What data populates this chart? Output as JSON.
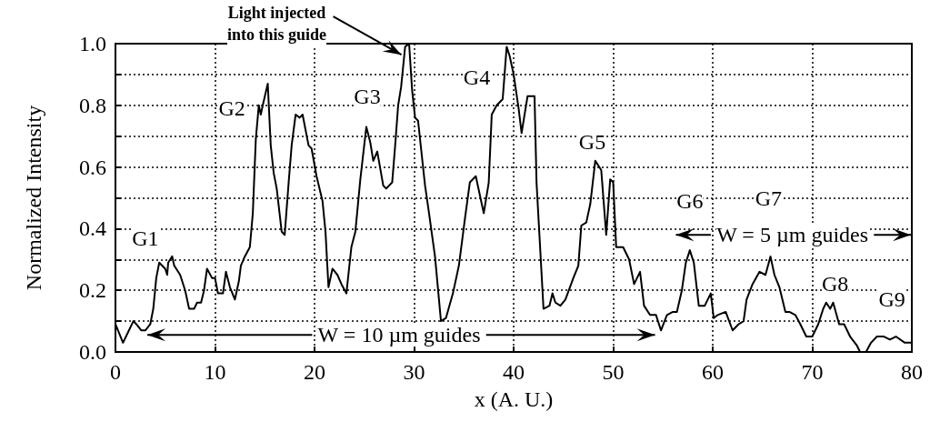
{
  "chart_data": {
    "type": "line",
    "xlabel": "x (A. U.)",
    "ylabel": "Normalized Intensity",
    "xlim": [
      0,
      80
    ],
    "xticks": [
      0,
      10,
      20,
      30,
      40,
      50,
      60,
      70,
      80
    ],
    "ylim": [
      0,
      1
    ],
    "yticks": [
      {
        "value": 0,
        "label": "0.0"
      },
      {
        "value": 0.1,
        "label": null
      },
      0.2,
      {
        "value": 0.3,
        "label": null
      },
      0.4,
      {
        "value": 0.5,
        "label": null
      },
      0.6,
      {
        "value": 0.7,
        "label": null
      },
      0.8,
      {
        "value": 0.9,
        "label": null
      },
      {
        "value": 1,
        "label": "1.0"
      }
    ],
    "grid": true,
    "marker": "none",
    "line_style": "solid",
    "series": [
      {
        "color": "#000000",
        "x": [
          0,
          0.76,
          1.06,
          1.8,
          2.1,
          2.6,
          3.0,
          3.5,
          3.8,
          4.1,
          4.4,
          5.0,
          5.2,
          5.3,
          5.7,
          5.9,
          6.5,
          7.0,
          7.4,
          7.9,
          8.2,
          8.6,
          8.9,
          9.2,
          9.7,
          10.0,
          10.3,
          10.8,
          11.1,
          11.5,
          12.0,
          12.4,
          12.6,
          13.0,
          13.5,
          13.8,
          14.1,
          14.4,
          14.6,
          14.8,
          15.3,
          15.6,
          15.9,
          16.2,
          16.7,
          17.0,
          17.4,
          17.7,
          18.1,
          18.5,
          18.8,
          19.4,
          19.7,
          20.2,
          20.8,
          21.1,
          21.4,
          21.8,
          22.3,
          22.7,
          23.2,
          23.7,
          24.1,
          24.6,
          25.2,
          25.6,
          25.9,
          26.3,
          26.9,
          27.2,
          27.8,
          28.1,
          28.4,
          28.7,
          29.1,
          29.5,
          29.8,
          30.1,
          30.4,
          31.1,
          31.5,
          32.1,
          32.7,
          33.2,
          33.9,
          34.5,
          35.1,
          35.6,
          36.2,
          37.0,
          37.5,
          37.8,
          38.3,
          38.9,
          39.3,
          39.6,
          40.0,
          40.5,
          40.8,
          41.4,
          42.1,
          42.3,
          43.0,
          43.6,
          43.9,
          44.2,
          44.7,
          45.2,
          46.0,
          46.5,
          46.8,
          47.3,
          47.7,
          48.2,
          48.8,
          49.3,
          49.7,
          50.0,
          50.3,
          51.0,
          51.6,
          52.1,
          52.7,
          53.1,
          53.7,
          54.3,
          54.8,
          55.4,
          56.0,
          56.4,
          56.9,
          57.3,
          57.7,
          58.1,
          58.6,
          59.2,
          59.8,
          60.1,
          60.5,
          61.3,
          62.0,
          62.6,
          63.1,
          63.4,
          64.0,
          64.7,
          65.3,
          65.8,
          66.2,
          66.7,
          67.3,
          67.7,
          68.3,
          68.8,
          69.4,
          70.0,
          70.6,
          71.1,
          71.4,
          71.8,
          72.1,
          72.7,
          73.2,
          73.8,
          74.5,
          74.8,
          75.4,
          75.9,
          76.5,
          77.2,
          77.8,
          78.4,
          79.3,
          80.0
        ],
        "values": [
          0.09,
          0.03,
          0.05,
          0.1,
          0.09,
          0.07,
          0.07,
          0.09,
          0.14,
          0.24,
          0.29,
          0.27,
          0.25,
          0.29,
          0.31,
          0.28,
          0.25,
          0.2,
          0.14,
          0.14,
          0.16,
          0.16,
          0.2,
          0.27,
          0.24,
          0.24,
          0.19,
          0.19,
          0.26,
          0.21,
          0.17,
          0.23,
          0.28,
          0.31,
          0.34,
          0.45,
          0.69,
          0.8,
          0.77,
          0.8,
          0.87,
          0.67,
          0.58,
          0.53,
          0.39,
          0.38,
          0.55,
          0.67,
          0.77,
          0.76,
          0.77,
          0.67,
          0.66,
          0.57,
          0.49,
          0.39,
          0.21,
          0.27,
          0.25,
          0.22,
          0.19,
          0.34,
          0.39,
          0.56,
          0.73,
          0.68,
          0.62,
          0.65,
          0.54,
          0.53,
          0.55,
          0.67,
          0.8,
          0.86,
          0.99,
          1.0,
          0.85,
          0.76,
          0.75,
          0.54,
          0.45,
          0.31,
          0.1,
          0.11,
          0.19,
          0.28,
          0.43,
          0.55,
          0.57,
          0.45,
          0.55,
          0.77,
          0.8,
          0.82,
          0.99,
          0.96,
          0.9,
          0.79,
          0.71,
          0.83,
          0.83,
          0.55,
          0.14,
          0.15,
          0.19,
          0.16,
          0.15,
          0.17,
          0.24,
          0.28,
          0.41,
          0.42,
          0.48,
          0.62,
          0.59,
          0.38,
          0.56,
          0.55,
          0.34,
          0.34,
          0.3,
          0.22,
          0.26,
          0.15,
          0.12,
          0.12,
          0.07,
          0.12,
          0.13,
          0.13,
          0.2,
          0.29,
          0.33,
          0.29,
          0.15,
          0.15,
          0.19,
          0.11,
          0.12,
          0.13,
          0.07,
          0.09,
          0.1,
          0.17,
          0.22,
          0.26,
          0.25,
          0.31,
          0.25,
          0.21,
          0.13,
          0.13,
          0.12,
          0.09,
          0.05,
          0.05,
          0.09,
          0.14,
          0.16,
          0.14,
          0.16,
          0.09,
          0.09,
          0.05,
          0.02,
          0.0,
          0.0,
          0.03,
          0.05,
          0.05,
          0.04,
          0.05,
          0.03,
          0.03
        ]
      }
    ],
    "annotations": [
      {
        "text": "Light injected\ninto this guide",
        "x": 29.0,
        "y": 0.97
      },
      {
        "text": "G1",
        "x": 3.0,
        "y": 0.37
      },
      {
        "text": "G2",
        "x": 11.7,
        "y": 0.79
      },
      {
        "text": "G3",
        "x": 25.3,
        "y": 0.83
      },
      {
        "text": "G4",
        "x": 36.3,
        "y": 0.89
      },
      {
        "text": "G5",
        "x": 47.9,
        "y": 0.68
      },
      {
        "text": "G6",
        "x": 57.7,
        "y": 0.49
      },
      {
        "text": "G7",
        "x": 65.6,
        "y": 0.5
      },
      {
        "text": "G8",
        "x": 72.3,
        "y": 0.22
      },
      {
        "text": "G9",
        "x": 78.0,
        "y": 0.17
      },
      "W = 10 µm guides",
      "W = 5 µm guides"
    ]
  }
}
